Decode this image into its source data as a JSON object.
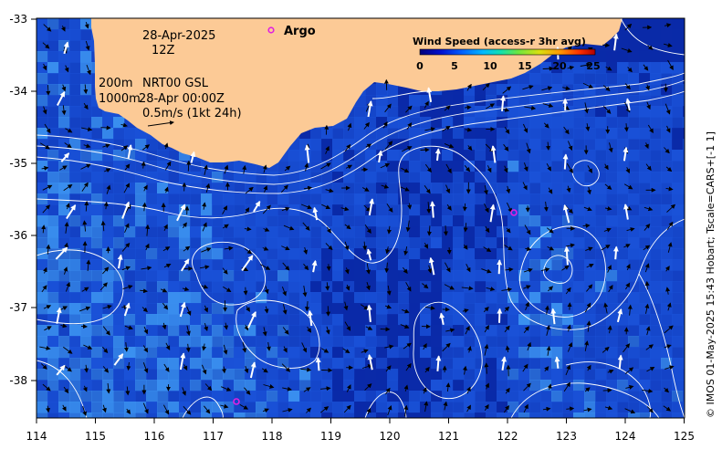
{
  "map": {
    "x_ticks": [
      "114",
      "115",
      "116",
      "117",
      "118",
      "119",
      "120",
      "121",
      "122",
      "123",
      "124",
      "125"
    ],
    "y_ticks": [
      "-33",
      "-34",
      "-35",
      "-36",
      "-37",
      "-38"
    ],
    "date_line1": "28-Apr-2025",
    "date_line2": "12Z",
    "contour_label_200": "200m",
    "contour_label_1000": "1000m",
    "nrt_label": "NRT00 GSL",
    "nrt_time": "28-Apr 00:00Z",
    "scale_label": "0.5m/s (1kt 24h)",
    "argo_label": "Argo",
    "credit": "© IMOS 01-May-2025 15:43 Hobart; Tscale=CARS+[-1 1]"
  },
  "colorbar": {
    "title": "Wind Speed (access-r 3hr avg)",
    "ticks": [
      "0",
      "5",
      "10",
      "15",
      "20",
      "25"
    ],
    "stops": [
      "#00007a",
      "#0010d0",
      "#0060ff",
      "#00b8ff",
      "#10e0b0",
      "#6ce640",
      "#d8e010",
      "#ff9800",
      "#ff3000",
      "#b00000"
    ]
  },
  "colors": {
    "land": "#fcca96",
    "ocean_deep": "#0a2aa8",
    "ocean_mid": "#1a52d8",
    "ocean_light": "#3a90f0",
    "argo_marker": "#e020e0"
  }
}
